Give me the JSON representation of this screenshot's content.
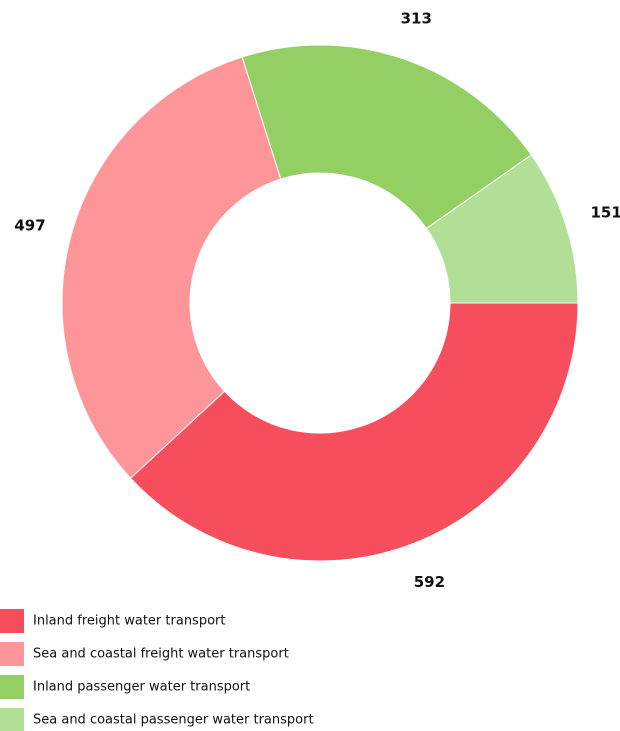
{
  "chart_data": {
    "type": "donut",
    "categories": [
      "Inland freight water transport",
      "Sea and coastal freight water transport",
      "Inland passenger water transport",
      "Sea and coastal passenger water transport"
    ],
    "values": [
      592,
      497,
      313,
      151
    ],
    "colors": [
      "#f74e5e",
      "#fd9599",
      "#93cf62",
      "#b1df96"
    ],
    "legend": "bottom-left"
  }
}
